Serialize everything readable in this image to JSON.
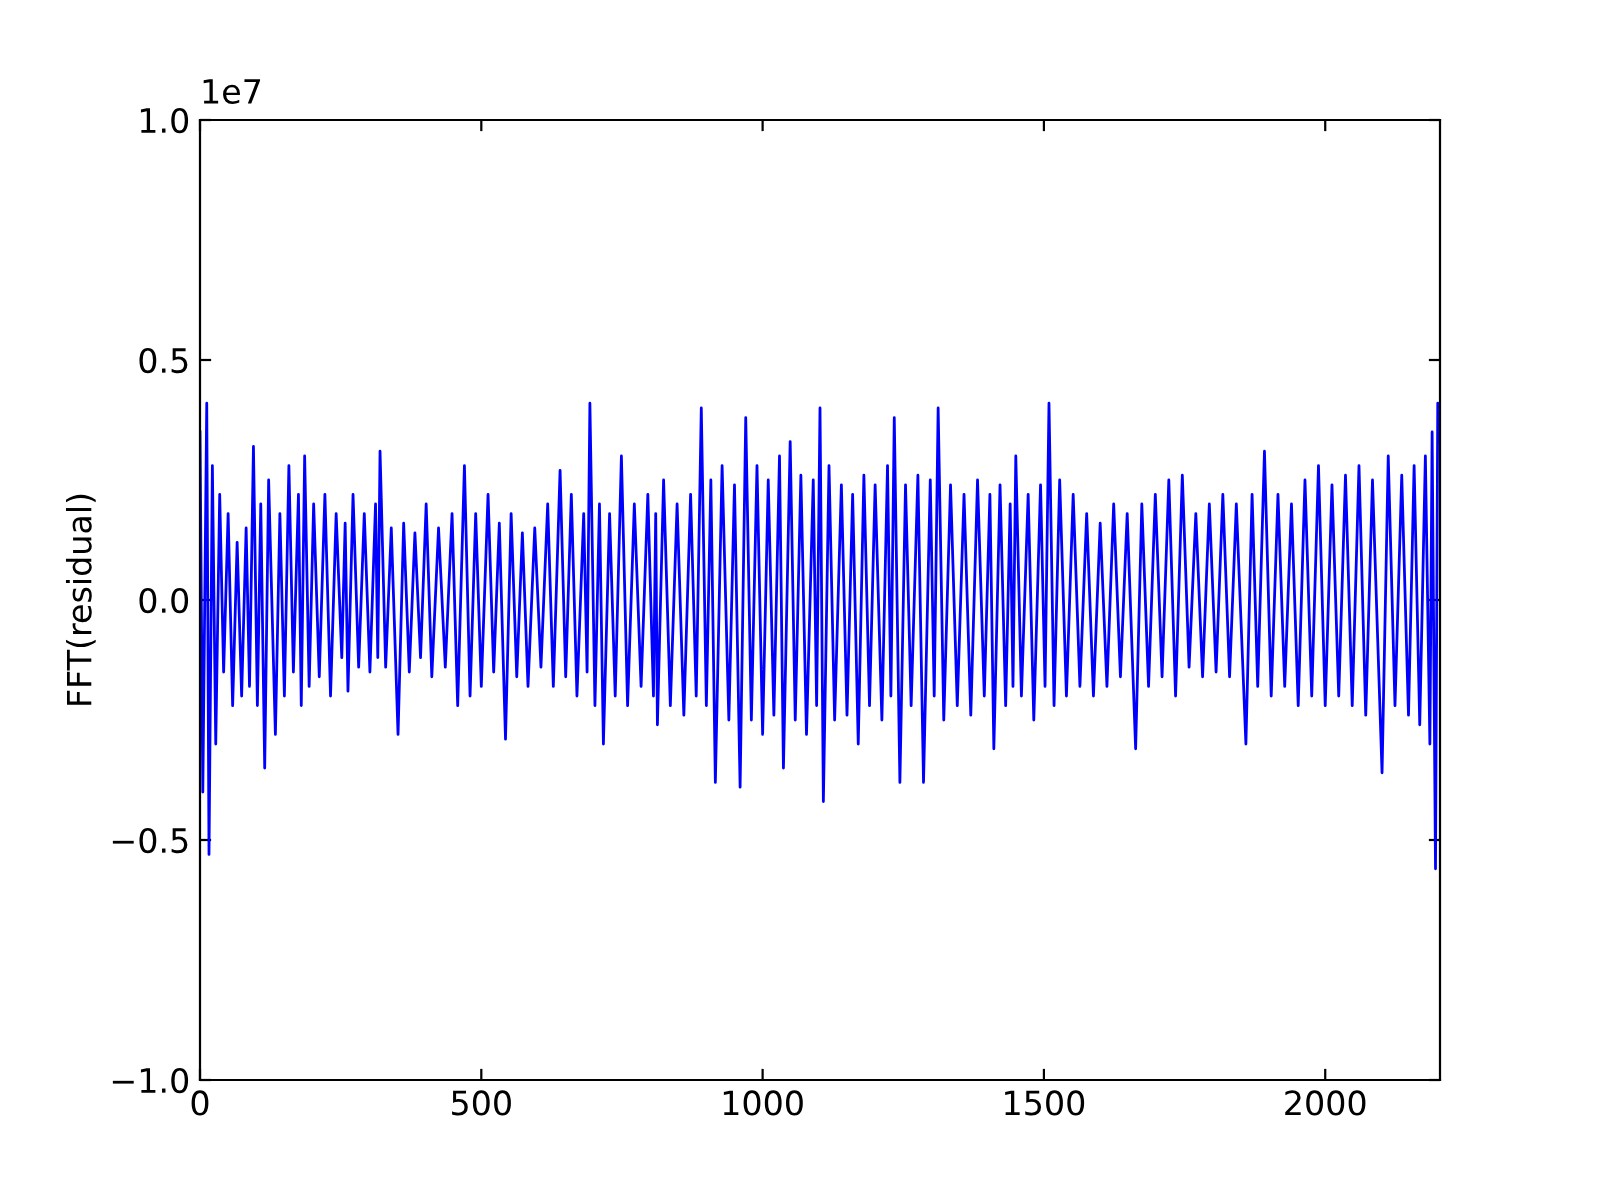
{
  "chart_data": {
    "type": "line",
    "ylabel": "FFT(residual)",
    "annotations": [
      "1e7"
    ],
    "grid": false,
    "x": [
      0,
      5,
      12,
      16,
      22,
      28,
      35,
      42,
      50,
      58,
      66,
      74,
      82,
      88,
      95,
      102,
      108,
      115,
      122,
      134,
      142,
      150,
      158,
      166,
      175,
      180,
      186,
      194,
      202,
      212,
      222,
      232,
      242,
      252,
      258,
      263,
      272,
      282,
      292,
      302,
      312,
      316,
      320,
      330,
      340,
      352,
      362,
      372,
      382,
      392,
      402,
      412,
      424,
      436,
      448,
      458,
      470,
      480,
      490,
      500,
      512,
      522,
      532,
      543,
      553,
      563,
      573,
      583,
      595,
      606,
      618,
      628,
      640,
      650,
      660,
      670,
      682,
      688,
      693,
      702,
      710,
      717,
      728,
      738,
      749,
      760,
      772,
      784,
      796,
      806,
      810,
      813,
      824,
      836,
      848,
      860,
      872,
      882,
      891,
      900,
      908,
      916,
      928,
      940,
      950,
      960,
      970,
      980,
      990,
      1000,
      1010,
      1020,
      1030,
      1037,
      1049,
      1058,
      1068,
      1078,
      1090,
      1096,
      1102,
      1108,
      1118,
      1128,
      1140,
      1150,
      1160,
      1170,
      1180,
      1190,
      1200,
      1212,
      1222,
      1228,
      1234,
      1244,
      1254,
      1264,
      1276,
      1286,
      1298,
      1305,
      1312,
      1322,
      1334,
      1346,
      1358,
      1370,
      1382,
      1394,
      1404,
      1411,
      1422,
      1432,
      1440,
      1445,
      1450,
      1460,
      1472,
      1482,
      1494,
      1502,
      1509,
      1518,
      1528,
      1540,
      1552,
      1564,
      1576,
      1588,
      1600,
      1612,
      1624,
      1636,
      1648,
      1663,
      1674,
      1686,
      1698,
      1710,
      1722,
      1734,
      1746,
      1758,
      1770,
      1782,
      1794,
      1806,
      1818,
      1830,
      1842,
      1859,
      1870,
      1880,
      1892,
      1904,
      1916,
      1928,
      1940,
      1952,
      1964,
      1976,
      1988,
      2000,
      2012,
      2024,
      2036,
      2048,
      2060,
      2072,
      2084,
      2101,
      2112,
      2124,
      2136,
      2148,
      2158,
      2168,
      2178,
      2186,
      2190,
      2196,
      2200,
      2204
    ],
    "series": [
      {
        "color": "#0000ff",
        "values": [
          0.35,
          -0.4,
          0.41,
          -0.53,
          0.28,
          -0.3,
          0.22,
          -0.15,
          0.18,
          -0.22,
          0.12,
          -0.2,
          0.15,
          -0.18,
          0.32,
          -0.22,
          0.2,
          -0.35,
          0.25,
          -0.28,
          0.18,
          -0.2,
          0.28,
          -0.15,
          0.22,
          -0.22,
          0.3,
          -0.18,
          0.2,
          -0.16,
          0.22,
          -0.2,
          0.18,
          -0.12,
          0.16,
          -0.19,
          0.22,
          -0.14,
          0.18,
          -0.15,
          0.2,
          -0.12,
          0.31,
          -0.14,
          0.15,
          -0.28,
          0.16,
          -0.15,
          0.14,
          -0.12,
          0.2,
          -0.16,
          0.15,
          -0.14,
          0.18,
          -0.22,
          0.28,
          -0.2,
          0.18,
          -0.18,
          0.22,
          -0.15,
          0.16,
          -0.29,
          0.18,
          -0.16,
          0.14,
          -0.18,
          0.15,
          -0.14,
          0.2,
          -0.18,
          0.27,
          -0.16,
          0.22,
          -0.2,
          0.18,
          -0.15,
          0.41,
          -0.22,
          0.2,
          -0.3,
          0.18,
          -0.2,
          0.3,
          -0.22,
          0.2,
          -0.18,
          0.22,
          -0.2,
          0.18,
          -0.26,
          0.25,
          -0.22,
          0.2,
          -0.24,
          0.22,
          -0.2,
          0.4,
          -0.22,
          0.25,
          -0.38,
          0.28,
          -0.25,
          0.24,
          -0.39,
          0.38,
          -0.25,
          0.28,
          -0.28,
          0.25,
          -0.24,
          0.3,
          -0.35,
          0.33,
          -0.25,
          0.26,
          -0.28,
          0.25,
          -0.22,
          0.4,
          -0.42,
          0.28,
          -0.25,
          0.24,
          -0.24,
          0.22,
          -0.3,
          0.26,
          -0.22,
          0.24,
          -0.25,
          0.28,
          -0.2,
          0.38,
          -0.38,
          0.24,
          -0.22,
          0.26,
          -0.38,
          0.25,
          -0.2,
          0.4,
          -0.25,
          0.24,
          -0.22,
          0.22,
          -0.24,
          0.25,
          -0.2,
          0.22,
          -0.31,
          0.24,
          -0.22,
          0.2,
          -0.18,
          0.3,
          -0.2,
          0.22,
          -0.25,
          0.24,
          -0.18,
          0.41,
          -0.22,
          0.25,
          -0.2,
          0.22,
          -0.18,
          0.18,
          -0.2,
          0.16,
          -0.18,
          0.2,
          -0.16,
          0.18,
          -0.31,
          0.2,
          -0.18,
          0.22,
          -0.16,
          0.25,
          -0.2,
          0.26,
          -0.14,
          0.18,
          -0.16,
          0.2,
          -0.15,
          0.22,
          -0.16,
          0.2,
          -0.3,
          0.22,
          -0.18,
          0.31,
          -0.2,
          0.22,
          -0.18,
          0.2,
          -0.22,
          0.25,
          -0.2,
          0.28,
          -0.22,
          0.24,
          -0.2,
          0.26,
          -0.22,
          0.28,
          -0.24,
          0.25,
          -0.36,
          0.3,
          -0.22,
          0.26,
          -0.24,
          0.28,
          -0.26,
          0.3,
          -0.3,
          0.35,
          -0.56,
          0.41,
          0.33
        ]
      }
    ],
    "xlim": [
      0,
      2204
    ],
    "xticks": [
      0,
      500,
      1000,
      1500,
      2000
    ],
    "ylim": [
      -1.0,
      1.0
    ],
    "yticks": [
      {
        "value": -1.0,
        "label": "−1.0"
      },
      {
        "value": -0.5,
        "label": "−0.5"
      },
      {
        "value": 0.0,
        "label": "0.0"
      },
      0.5,
      {
        "value": 1.0,
        "label": "1.0"
      }
    ]
  }
}
